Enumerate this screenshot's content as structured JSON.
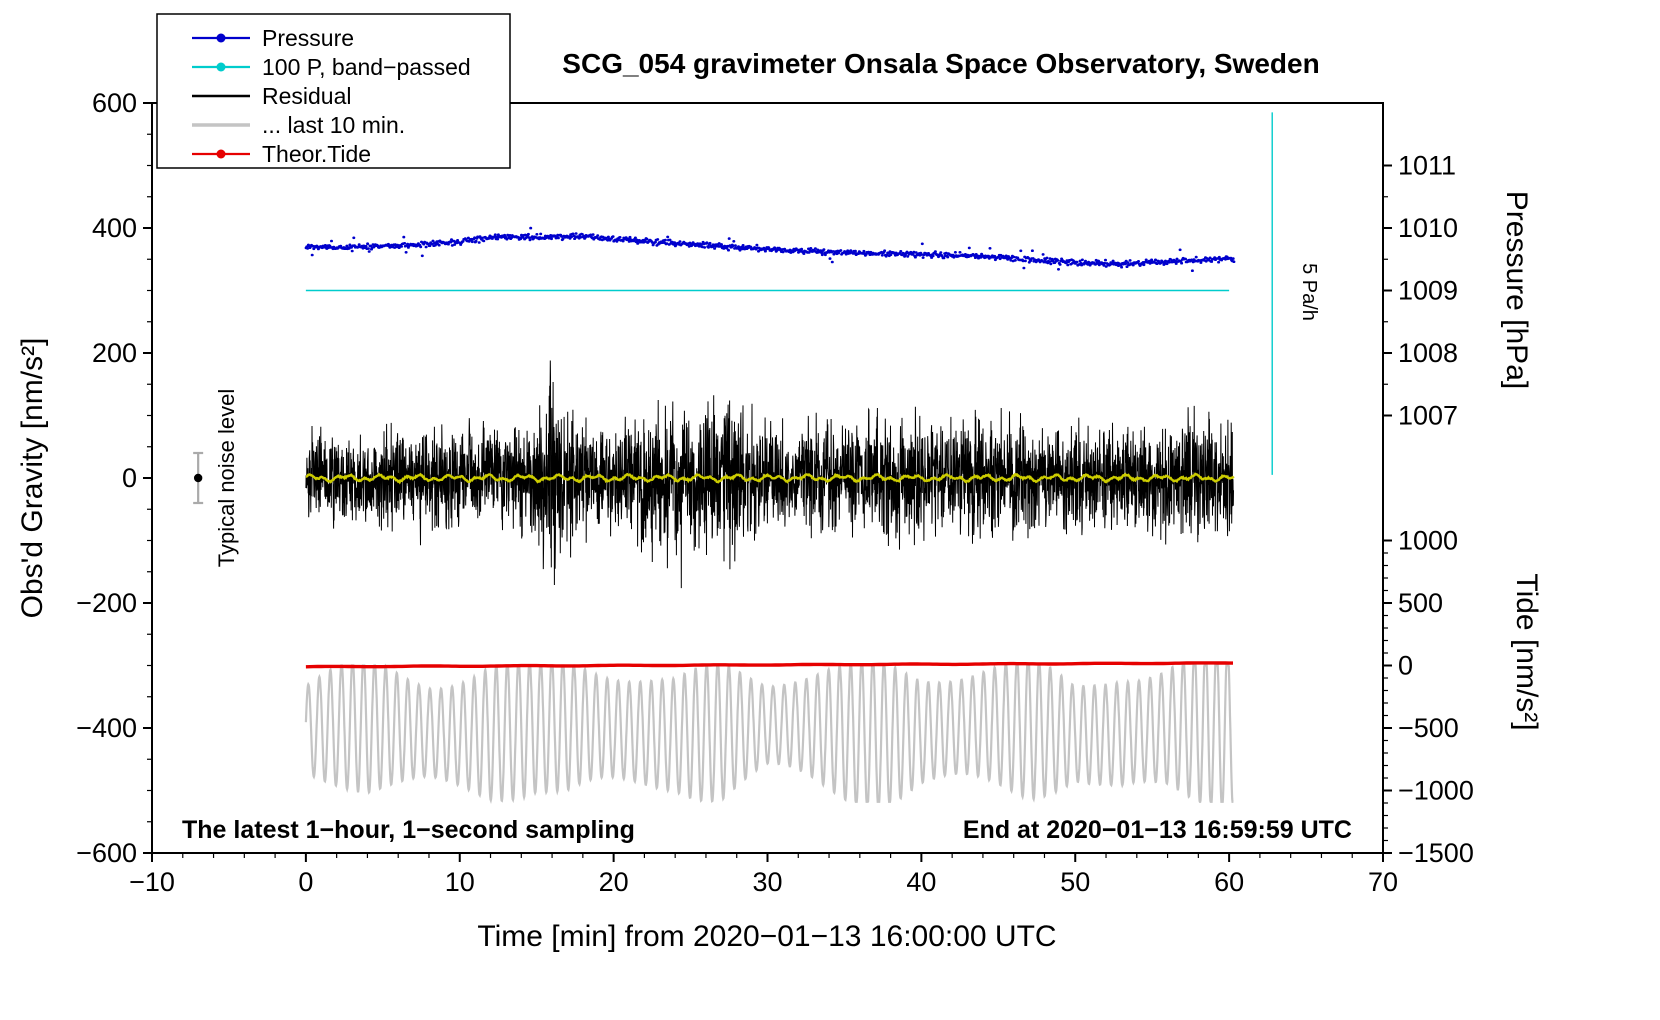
{
  "title": "SCG_054 gravimeter Onsala Space Observatory, Sweden",
  "annotations": {
    "sampling_note": "The latest 1−hour, 1−second sampling",
    "end_note": "End at 2020−01−13 16:59:59 UTC",
    "noise_label": "Typical noise level",
    "rate_label": "5 Pa/h"
  },
  "legend": {
    "position": "top-left",
    "items": [
      {
        "label": "Pressure",
        "color": "#0000cc",
        "marker": "dot"
      },
      {
        "label": "100 P, band−passed",
        "color": "#00cccc",
        "marker": "dot"
      },
      {
        "label": "Residual",
        "color": "#000000",
        "marker": "line"
      },
      {
        "label": "... last 10 min.",
        "color": "#c4c4c4",
        "marker": "thick-line"
      },
      {
        "label": "Theor.Tide",
        "color": "#e60000",
        "marker": "dot"
      }
    ]
  },
  "axes": {
    "x": {
      "label": "Time [min] from 2020−01−13 16:00:00 UTC",
      "min": -10,
      "max": 70,
      "ticks": [
        {
          "v": -10,
          "label": "−10"
        },
        {
          "v": 0,
          "label": "0"
        },
        {
          "v": 10,
          "label": "10"
        },
        {
          "v": 20,
          "label": "20"
        },
        {
          "v": 30,
          "label": "30"
        },
        {
          "v": 40,
          "label": "40"
        },
        {
          "v": 50,
          "label": "50"
        },
        {
          "v": 60,
          "label": "60"
        },
        {
          "v": 70,
          "label": "70"
        }
      ],
      "minor_step": 2
    },
    "y_left": {
      "label": "Obs'd Gravity [nm/s²]",
      "min": -600,
      "max": 600,
      "ticks": [
        {
          "v": 600,
          "label": "600"
        },
        {
          "v": 400,
          "label": "400"
        },
        {
          "v": 200,
          "label": "200"
        },
        {
          "v": 0,
          "label": "0"
        },
        {
          "v": -200,
          "label": "−200"
        },
        {
          "v": -400,
          "label": "−400"
        },
        {
          "v": -600,
          "label": "−600"
        }
      ],
      "minor_step": 50
    },
    "y_right_pressure": {
      "label": "Pressure [hPa]",
      "ticks": [
        {
          "v": 1011,
          "label": "1011"
        },
        {
          "v": 1010,
          "label": "1010"
        },
        {
          "v": 1009,
          "label": "1009"
        },
        {
          "v": 1008,
          "label": "1008"
        },
        {
          "v": 1007,
          "label": "1007"
        }
      ],
      "map": {
        "hpa_ref": 1009,
        "gravity_ref": 300,
        "gravity_per_hpa": 100
      },
      "minor_step_hpa": 0.5
    },
    "y_right_tide": {
      "label": "Tide [nm/s²]",
      "ticks": [
        {
          "v": 1000,
          "label": "1000"
        },
        {
          "v": 500,
          "label": "500"
        },
        {
          "v": 0,
          "label": "0"
        },
        {
          "v": -500,
          "label": "−500"
        },
        {
          "v": -1000,
          "label": "−1000"
        },
        {
          "v": -1500,
          "label": "−1500"
        }
      ],
      "map": {
        "tide_ref": 0,
        "gravity_ref": -300,
        "gravity_per_tide": 0.2
      },
      "minor_step_tide": 100
    }
  },
  "chart_data": {
    "type": "line",
    "title": "SCG_054 gravimeter Onsala Space Observatory, Sweden",
    "xlabel": "Time [min] from 2020−01−13 16:00:00 UTC",
    "ylabel": "Obs'd Gravity [nm/s²]",
    "xlim": [
      -10,
      70
    ],
    "ylim": [
      -600,
      600
    ],
    "grid": false,
    "legend_position": "top-left",
    "seed": 54,
    "x_plotted_range": [
      0,
      60.3
    ],
    "series": [
      {
        "name": "Pressure",
        "color": "#0000cc",
        "style": "dense-dots",
        "axis": "pressure_hpa",
        "anchors_x": [
          0,
          2.5,
          5,
          7.5,
          10,
          12.5,
          15,
          17.5,
          20,
          22.5,
          25,
          27.5,
          30,
          32.5,
          35,
          37.5,
          40,
          42.5,
          45,
          47.5,
          50,
          52.5,
          55,
          57.5,
          60,
          60.3
        ],
        "anchors_y": [
          1009.7,
          1009.69,
          1009.72,
          1009.73,
          1009.78,
          1009.86,
          1009.85,
          1009.87,
          1009.83,
          1009.78,
          1009.73,
          1009.7,
          1009.66,
          1009.63,
          1009.61,
          1009.59,
          1009.58,
          1009.56,
          1009.53,
          1009.48,
          1009.45,
          1009.43,
          1009.45,
          1009.48,
          1009.51,
          1009.51
        ],
        "noise_sigma_gravity": 4.5,
        "sample_step_min": 0.05
      },
      {
        "name": "100 P, band−passed",
        "color": "#00cccc",
        "style": "reference",
        "h_line": {
          "y_hpa": 1009.0,
          "x_from": 0,
          "x_to": 60
        },
        "v_line": {
          "x": 62.8,
          "gravity_from": 585,
          "gravity_to": 5,
          "label": "5 Pa/h"
        }
      },
      {
        "name": "Residual",
        "color": "#000000",
        "style": "noise",
        "center_gravity": 0,
        "envelope_x": [
          0,
          3,
          6,
          9,
          12,
          15,
          15.8,
          16.3,
          17,
          18,
          20,
          22,
          23,
          25,
          27,
          27.6,
          29,
          31,
          33,
          35,
          37,
          39,
          41,
          43,
          45,
          47,
          49,
          51,
          53,
          55,
          57,
          59,
          60.3
        ],
        "envelope_halfwidth": [
          95,
          105,
          110,
          112,
          108,
          125,
          215,
          225,
          150,
          120,
          115,
          150,
          165,
          140,
          180,
          190,
          135,
          105,
          120,
          130,
          152,
          122,
          148,
          135,
          143,
          122,
          127,
          116,
          112,
          130,
          127,
          128,
          130
        ],
        "sample_step_min": 0.0167,
        "clip": [
          -240,
          225
        ]
      },
      {
        "name": "Residual smoothed",
        "color": "#cccc00",
        "style": "wiggle",
        "center_gravity": 0,
        "amp1": 3,
        "p1": 2.3,
        "amp2": 2.5,
        "p2": 0.9,
        "noise": 1.2,
        "sample_step_min": 0.05
      },
      {
        "name": "... last 10 min.",
        "color": "#c4c4c4",
        "style": "oscillation",
        "center_gravity": -403,
        "period_min": 0.72,
        "amp_x": [
          0,
          4,
          8,
          12,
          15,
          17,
          20,
          24,
          27,
          30,
          34,
          37,
          40,
          44,
          47,
          50,
          53,
          56,
          58,
          60.3
        ],
        "amp": [
          70,
          95,
          85,
          100,
          90,
          105,
          95,
          80,
          100,
          72,
          95,
          105,
          85,
          95,
          100,
          70,
          100,
          95,
          110,
          112
        ],
        "clip": [
          -518,
          -300
        ],
        "sample_step_min": 0.02
      },
      {
        "name": "Theor.Tide",
        "color": "#e60000",
        "style": "smooth",
        "axis": "gravity",
        "anchors_x": [
          0,
          10,
          20,
          30,
          40,
          50,
          60.3
        ],
        "anchors_y": [
          -302,
          -301,
          -300,
          -299,
          -298,
          -297,
          -296
        ],
        "sample_step_min": 0.25
      }
    ],
    "noise_marker": {
      "x": -7,
      "gravity": 0,
      "halfwidth": 40,
      "dot_color": "#000000",
      "bar_color": "#aaaaaa",
      "label": "Typical noise level"
    }
  }
}
